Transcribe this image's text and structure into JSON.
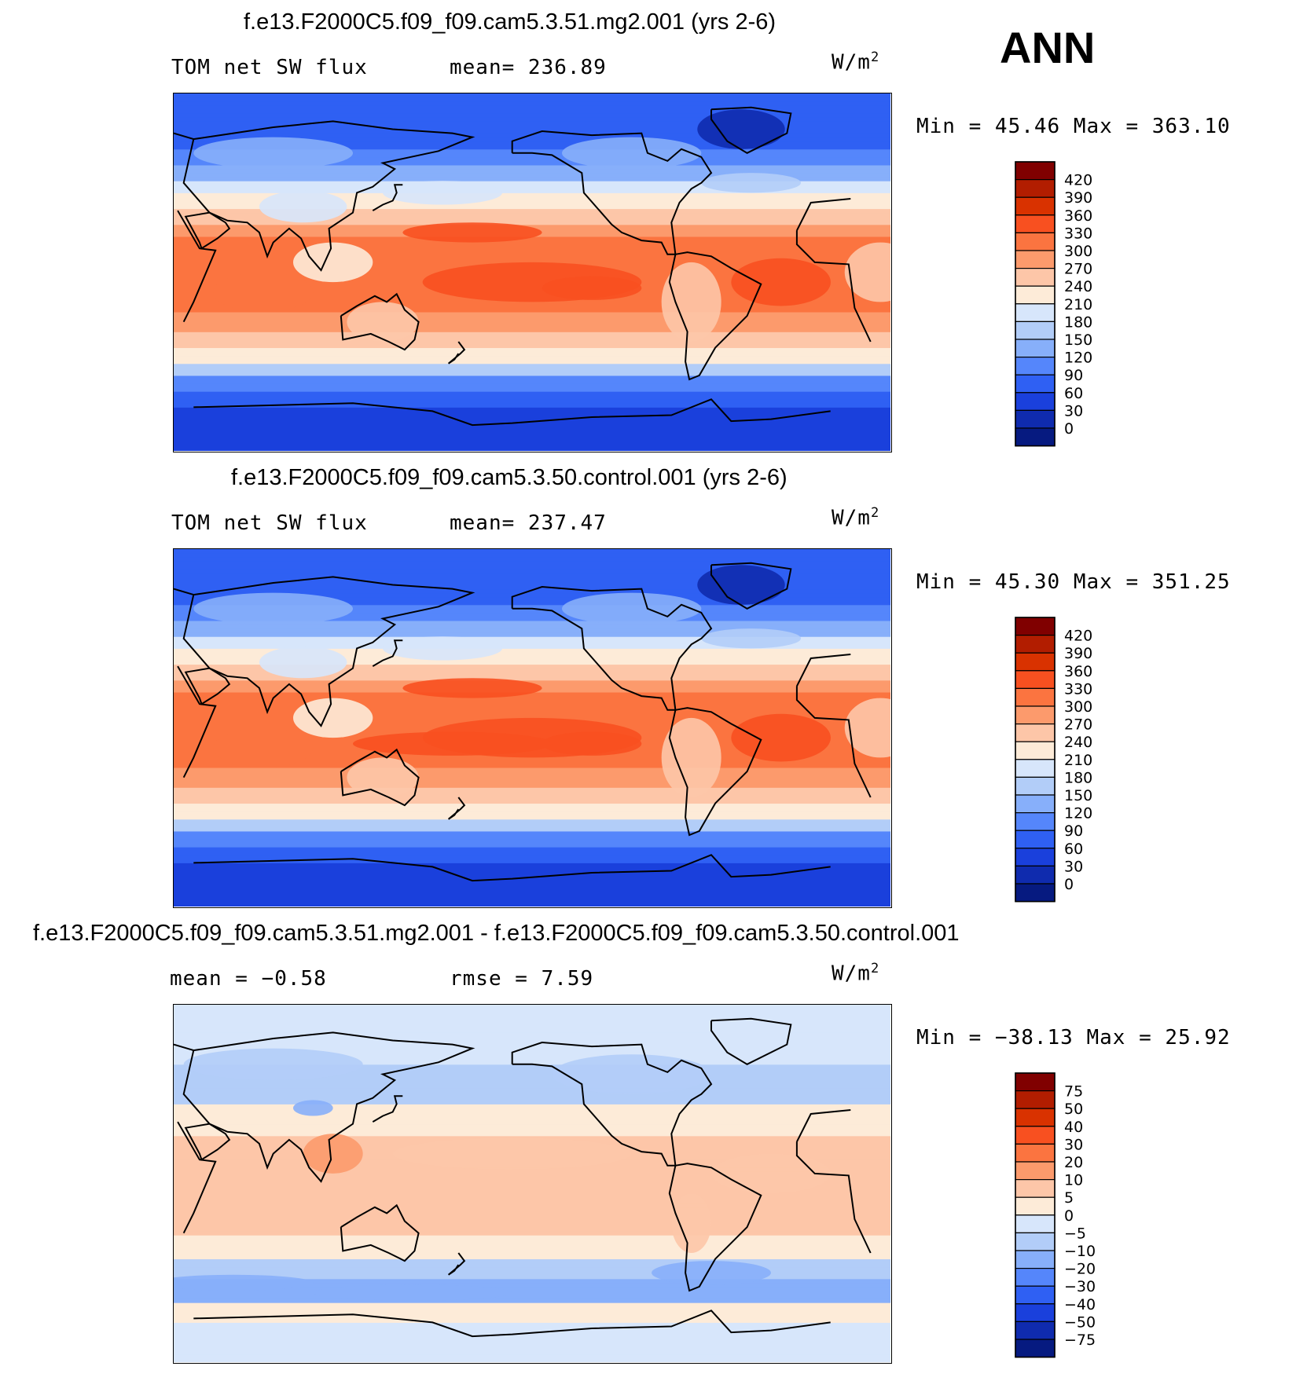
{
  "season": "ANN",
  "panels": [
    {
      "title": "f.e13.F2000C5.f09_f09.cam5.3.51.mg2.001 (yrs 2-6)",
      "left": "TOM net SW flux",
      "middle": "mean=  236.89",
      "units": "W/m",
      "units_sup": "2",
      "minmax": "Min =    45.46  Max  =  363.10",
      "colorbar": {
        "labels": [
          "420",
          "390",
          "360",
          "330",
          "300",
          "270",
          "240",
          "210",
          "180",
          "150",
          "120",
          "90",
          "60",
          "30",
          "0"
        ],
        "colors": [
          "#800000",
          "#b21d00",
          "#d93200",
          "#f85020",
          "#fb7440",
          "#fc9a6c",
          "#fdc6a8",
          "#fdebd8",
          "#d7e6fb",
          "#b2cdf8",
          "#87affa",
          "#5586fb",
          "#2f60f3",
          "#1a40dc",
          "#0f2bae",
          "#061a80"
        ]
      },
      "kind": "abs",
      "variant": 1
    },
    {
      "title": "f.e13.F2000C5.f09_f09.cam5.3.50.control.001 (yrs 2-6)",
      "left": "TOM net SW flux",
      "middle": "mean=  237.47",
      "units": "W/m",
      "units_sup": "2",
      "minmax": "Min =    45.30  Max  =  351.25",
      "colorbar": {
        "labels": [
          "420",
          "390",
          "360",
          "330",
          "300",
          "270",
          "240",
          "210",
          "180",
          "150",
          "120",
          "90",
          "60",
          "30",
          "0"
        ],
        "colors": [
          "#800000",
          "#b21d00",
          "#d93200",
          "#f85020",
          "#fb7440",
          "#fc9a6c",
          "#fdc6a8",
          "#fdebd8",
          "#d7e6fb",
          "#b2cdf8",
          "#87affa",
          "#5586fb",
          "#2f60f3",
          "#1a40dc",
          "#0f2bae",
          "#061a80"
        ]
      },
      "kind": "abs",
      "variant": 2
    },
    {
      "title": "f.e13.F2000C5.f09_f09.cam5.3.51.mg2.001 - f.e13.F2000C5.f09_f09.cam5.3.50.control.001",
      "left": "mean  =    −0.58",
      "middle": "rmse  =     7.59",
      "units": "W/m",
      "units_sup": "2",
      "minmax": "Min  = −38.13  Max  =    25.92",
      "colorbar": {
        "labels": [
          "75",
          "50",
          "40",
          "30",
          "20",
          "10",
          "5",
          "0",
          "−5",
          "−10",
          "−20",
          "−30",
          "−40",
          "−50",
          "−75"
        ],
        "colors": [
          "#800000",
          "#b21d00",
          "#d93200",
          "#f85020",
          "#fb7440",
          "#fc9a6c",
          "#fdc6a8",
          "#fdebd8",
          "#d7e6fb",
          "#b2cdf8",
          "#87affa",
          "#5586fb",
          "#2f60f3",
          "#1a40dc",
          "#0f2bae",
          "#061a80"
        ]
      },
      "kind": "diff",
      "variant": 3
    }
  ]
}
